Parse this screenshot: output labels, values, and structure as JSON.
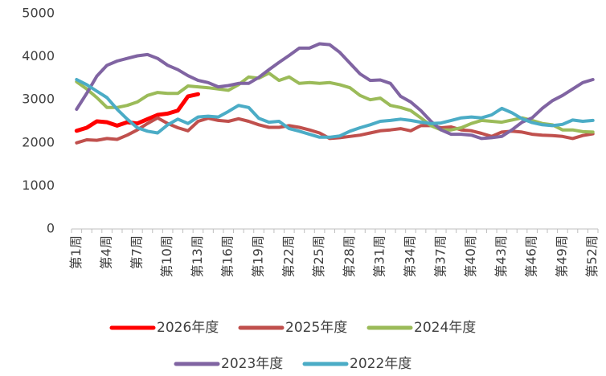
{
  "chart_data": {
    "type": "line",
    "categories": [
      "第1周",
      null,
      null,
      "第4周",
      null,
      null,
      "第7周",
      null,
      null,
      "第10周",
      null,
      null,
      "第13周",
      null,
      null,
      "第16周",
      null,
      null,
      "第19周",
      null,
      null,
      "第22周",
      null,
      null,
      "第25周",
      null,
      null,
      "第28周",
      null,
      null,
      "第31周",
      null,
      null,
      "第34周",
      null,
      null,
      "第37周",
      null,
      null,
      "第40周",
      null,
      null,
      "第43周",
      null,
      null,
      "第46周",
      null,
      null,
      "第49周",
      null,
      null,
      "第52周"
    ],
    "series": [
      {
        "name": "2026年度",
        "color": "#ff0000",
        "values": [
          2280,
          2350,
          2500,
          2480,
          2400,
          2480,
          2450,
          2550,
          2650,
          2680,
          2750,
          3080,
          3130,
          null,
          null,
          null,
          null,
          null,
          null,
          null,
          null,
          null,
          null,
          null,
          null,
          null,
          null,
          null,
          null,
          null,
          null,
          null,
          null,
          null,
          null,
          null,
          null,
          null,
          null,
          null,
          null,
          null,
          null,
          null,
          null,
          null,
          null,
          null,
          null,
          null,
          null,
          null
        ]
      },
      {
        "name": "2025年度",
        "color": "#c0504d",
        "values": [
          2000,
          2070,
          2060,
          2100,
          2080,
          2180,
          2300,
          2450,
          2580,
          2450,
          2350,
          2280,
          2500,
          2570,
          2520,
          2500,
          2560,
          2500,
          2420,
          2360,
          2360,
          2400,
          2360,
          2300,
          2230,
          2100,
          2120,
          2150,
          2180,
          2230,
          2280,
          2300,
          2330,
          2280,
          2400,
          2400,
          2350,
          2370,
          2300,
          2280,
          2220,
          2150,
          2250,
          2270,
          2250,
          2200,
          2180,
          2170,
          2150,
          2100,
          2170,
          2210
        ]
      },
      {
        "name": "2024年度",
        "color": "#9bbb59",
        "values": [
          3420,
          3250,
          3050,
          2820,
          2820,
          2870,
          2950,
          3100,
          3170,
          3150,
          3150,
          3320,
          3300,
          3280,
          3250,
          3220,
          3350,
          3530,
          3500,
          3620,
          3450,
          3530,
          3380,
          3400,
          3380,
          3400,
          3350,
          3280,
          3100,
          3000,
          3040,
          2870,
          2820,
          2750,
          2580,
          2400,
          2300,
          2300,
          2350,
          2450,
          2520,
          2500,
          2480,
          2530,
          2580,
          2520,
          2450,
          2420,
          2300,
          2300,
          2260,
          2250
        ]
      },
      {
        "name": "2023年度",
        "color": "#8064a2",
        "values": [
          2780,
          3150,
          3550,
          3800,
          3900,
          3960,
          4020,
          4050,
          3960,
          3800,
          3700,
          3560,
          3450,
          3400,
          3300,
          3330,
          3380,
          3380,
          3520,
          3700,
          3870,
          4030,
          4200,
          4200,
          4300,
          4280,
          4100,
          3850,
          3600,
          3450,
          3460,
          3380,
          3080,
          2950,
          2750,
          2500,
          2300,
          2200,
          2200,
          2180,
          2100,
          2120,
          2150,
          2300,
          2480,
          2580,
          2800,
          2980,
          3100,
          3250,
          3400,
          3470
        ]
      },
      {
        "name": "2022年度",
        "color": "#4bacc6",
        "values": [
          3470,
          3350,
          3200,
          3050,
          2780,
          2550,
          2350,
          2270,
          2230,
          2420,
          2550,
          2450,
          2600,
          2620,
          2600,
          2730,
          2870,
          2820,
          2570,
          2480,
          2500,
          2330,
          2270,
          2200,
          2130,
          2130,
          2160,
          2270,
          2350,
          2420,
          2500,
          2520,
          2550,
          2520,
          2480,
          2450,
          2460,
          2520,
          2580,
          2600,
          2580,
          2650,
          2800,
          2700,
          2560,
          2470,
          2420,
          2400,
          2430,
          2530,
          2500,
          2520
        ]
      }
    ],
    "ylim": [
      0,
      5000
    ],
    "yticks": [
      0,
      1000,
      2000,
      3000,
      4000,
      5000
    ],
    "grid": false,
    "legend": "bottom"
  }
}
